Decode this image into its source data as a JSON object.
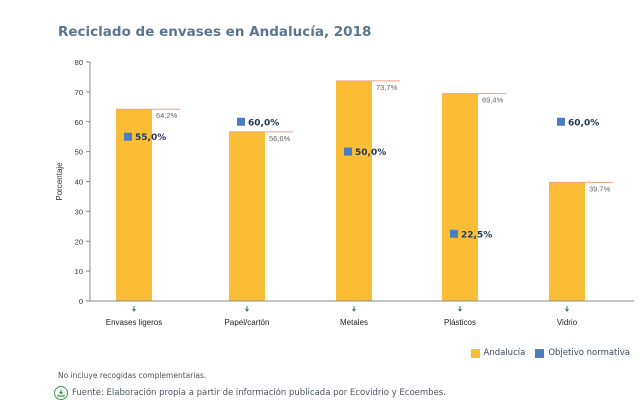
{
  "chart_data": {
    "type": "bar",
    "title": "Reciclado de envases en Andalucía, 2018",
    "xlabel": "",
    "ylabel": "Porcentaje",
    "ylim": [
      0,
      80
    ],
    "yticks": [
      "0",
      "10",
      "20",
      "30",
      "40",
      "50",
      "60",
      "70",
      "80"
    ],
    "categories": [
      "Envases ligeros",
      "Papel/cartón",
      "Metales",
      "Plásticos",
      "Vidrio"
    ],
    "series": [
      {
        "name": "Andalucía",
        "kind": "bar",
        "color": "#fbbd36",
        "values": [
          64.2,
          56.6,
          73.7,
          69.4,
          39.7
        ],
        "labels": [
          "64,2%",
          "56,6%",
          "73,7%",
          "69,4%",
          "39,7%"
        ]
      },
      {
        "name": "Objetivo normativa",
        "kind": "marker",
        "color": "#4a7ec0",
        "values": [
          55.0,
          60.0,
          50.0,
          22.5,
          60.0
        ],
        "labels": [
          "55,0%",
          "60,0%",
          "50,0%",
          "22,5%",
          "60,0%"
        ]
      }
    ],
    "legend": "bottom-right",
    "grid": false
  },
  "footer": {
    "note": "No incluye recogidas complementarias.",
    "source": "Fuente: Elaboración propia a partir de información publicada por Ecovidrio y Ecoembes."
  },
  "colors": {
    "title": "#5b7590",
    "bar": "#fbbd36",
    "bar_top_line": "#f0a080",
    "marker": "#4a7ec0",
    "marker_label": "#1f3a5c",
    "tick_mark": "#2e7d4a"
  }
}
